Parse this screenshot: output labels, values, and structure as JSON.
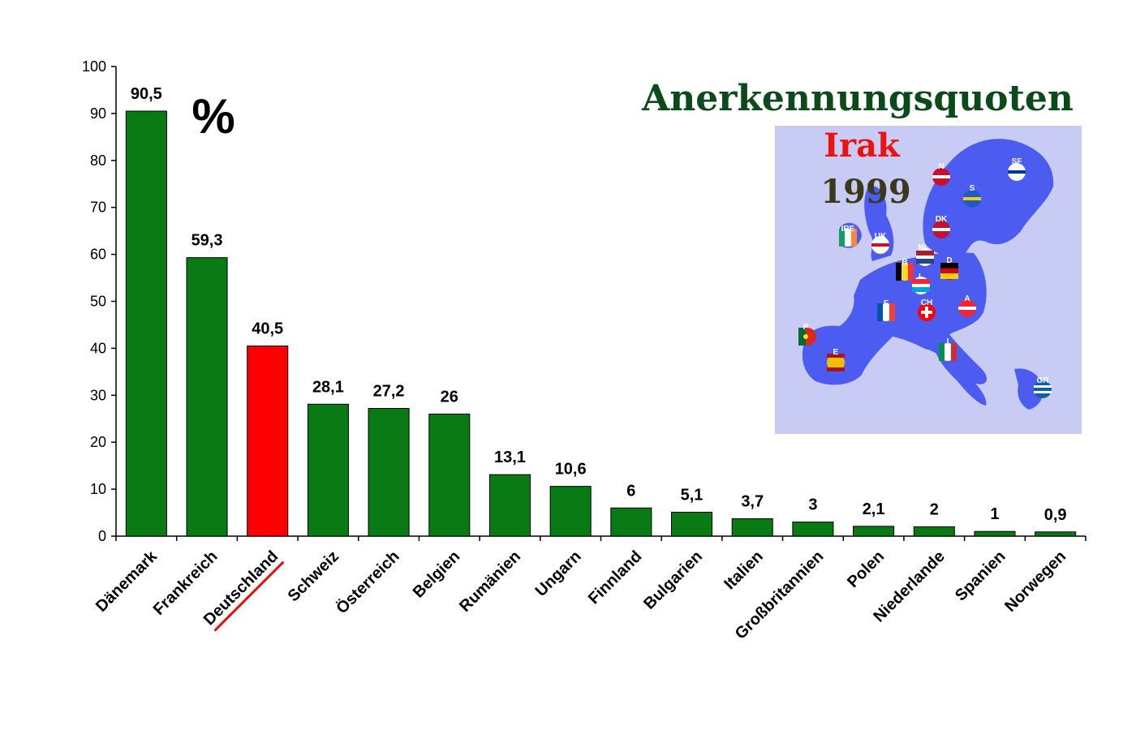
{
  "chart_data": {
    "type": "bar",
    "title": "Anerkennungsquoten",
    "subtitle": "Irak",
    "year": "1999",
    "unit_label": "%",
    "categories": [
      "Dänemark",
      "Frankreich",
      "Deutschland",
      "Schweiz",
      "Österreich",
      "Belgien",
      "Rumänien",
      "Ungarn",
      "Finnland",
      "Bulgarien",
      "Italien",
      "Großbritannien",
      "Polen",
      "Niederlande",
      "Spanien",
      "Norwegen"
    ],
    "values": [
      90.5,
      59.3,
      40.5,
      28.1,
      27.2,
      26,
      13.1,
      10.6,
      6,
      5.1,
      3.7,
      3,
      2.1,
      2,
      1,
      0.9
    ],
    "value_labels": [
      "90,5",
      "59,3",
      "40,5",
      "28,1",
      "27,2",
      "26",
      "13,1",
      "10,6",
      "6",
      "5,1",
      "3,7",
      "3",
      "2,1",
      "2",
      "1",
      "0,9"
    ],
    "highlight_category": "Deutschland",
    "ylim": [
      0,
      100
    ],
    "yticks": [
      0,
      10,
      20,
      30,
      40,
      50,
      60,
      70,
      80,
      90,
      100
    ],
    "xlabel": "",
    "ylabel": "",
    "grid": false,
    "legend": "none",
    "colors": {
      "bar": "#0a7a14",
      "highlight": "#ff0000",
      "underline": "#e01010"
    }
  },
  "map": {
    "icon": "europe-map-flags-icon",
    "country_codes": [
      "N",
      "SF",
      "S",
      "DK",
      "IRE",
      "UK",
      "NL",
      "B",
      "L",
      "D",
      "F",
      "CH",
      "A",
      "P",
      "E",
      "I",
      "GR"
    ],
    "colors": {
      "land": "#4c5cf0",
      "sea": "#c8ccf4"
    }
  }
}
